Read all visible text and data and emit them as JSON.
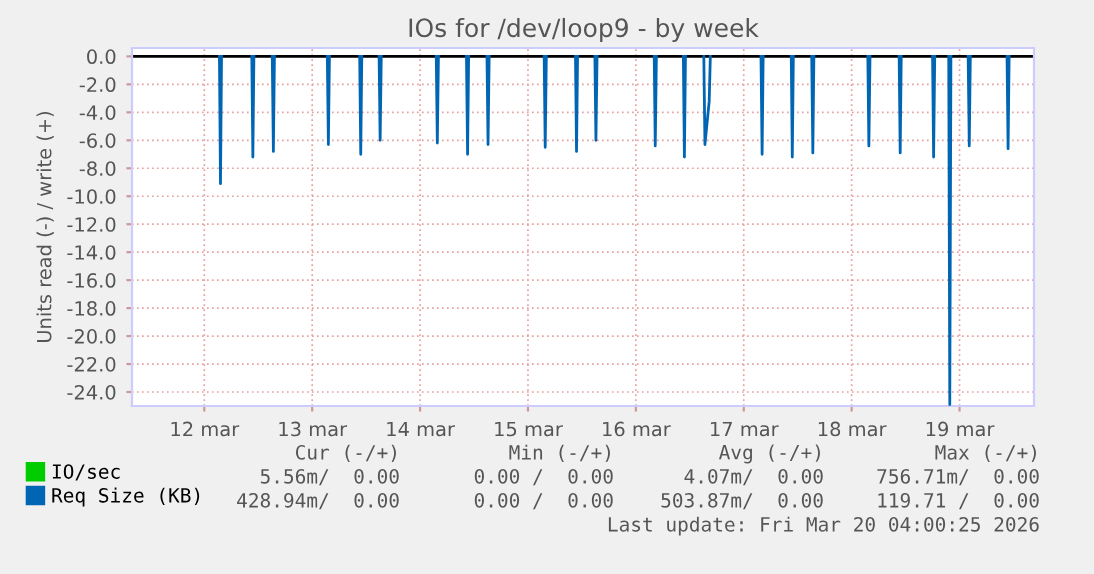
{
  "chart_data": {
    "type": "line",
    "title": "IOs for /dev/loop9 - by week",
    "ylabel": "Units read (-) / write (+)",
    "xlim": [
      "2026-03-11T07:55",
      "2026-03-19T16:34"
    ],
    "xticks": [
      {
        "value": "2026-03-12",
        "label": "12 mar"
      },
      {
        "value": "2026-03-13",
        "label": "13 mar"
      },
      {
        "value": "2026-03-14",
        "label": "14 mar"
      },
      {
        "value": "2026-03-15",
        "label": "15 mar"
      },
      {
        "value": "2026-03-16",
        "label": "16 mar"
      },
      {
        "value": "2026-03-17",
        "label": "17 mar"
      },
      {
        "value": "2026-03-18",
        "label": "18 mar"
      },
      {
        "value": "2026-03-19",
        "label": "19 mar"
      }
    ],
    "ylim": [
      -25,
      0.6
    ],
    "yticks": [
      {
        "value": -24,
        "label": "-24.0"
      },
      {
        "value": -22,
        "label": "-22.0"
      },
      {
        "value": -20,
        "label": "-20.0"
      },
      {
        "value": -18,
        "label": "-18.0"
      },
      {
        "value": -16,
        "label": "-16.0"
      },
      {
        "value": -14,
        "label": "-14.0"
      },
      {
        "value": -12,
        "label": "-12.0"
      },
      {
        "value": -10,
        "label": "-10.0"
      },
      {
        "value": -8,
        "label": "-8.0"
      },
      {
        "value": -6,
        "label": "-6.0"
      },
      {
        "value": -4,
        "label": "-4.0"
      },
      {
        "value": -2,
        "label": "-2.0"
      },
      {
        "value": 0,
        "label": "0.0"
      }
    ],
    "grid": true,
    "legend": "bottom left",
    "ref_lines": [
      {
        "axis": "y",
        "value": 0,
        "color": "#000000"
      }
    ],
    "series": [
      {
        "name": "IO/sec",
        "color": "#00cc00"
      },
      {
        "name": "Req Size (KB)",
        "color": "#0066b3",
        "x": [
          "2026-03-12T03:22",
          "2026-03-12T03:36",
          "2026-03-12T03:50"
        ],
        "values": [
          0,
          -9.1,
          0
        ]
      },
      {
        "color": "#0066b3",
        "x": [
          "2026-03-12T10:34",
          "2026-03-12T10:48",
          "2026-03-12T11:02"
        ],
        "values": [
          0,
          -7.2,
          0
        ]
      },
      {
        "color": "#0066b3",
        "x": [
          "2026-03-12T15:07",
          "2026-03-12T15:22",
          "2026-03-12T15:36"
        ],
        "values": [
          0,
          -6.8,
          0
        ]
      },
      {
        "color": "#0066b3",
        "x": [
          "2026-03-13T03:22",
          "2026-03-13T03:36",
          "2026-03-13T03:50"
        ],
        "values": [
          0,
          -6.3,
          0
        ]
      },
      {
        "color": "#0066b3",
        "x": [
          "2026-03-13T10:34",
          "2026-03-13T10:48",
          "2026-03-13T11:02"
        ],
        "values": [
          0,
          -7.0,
          0
        ]
      },
      {
        "color": "#0066b3",
        "x": [
          "2026-03-13T14:53",
          "2026-03-13T15:07",
          "2026-03-13T15:22"
        ],
        "values": [
          0,
          -6.0,
          0
        ]
      },
      {
        "color": "#0066b3",
        "x": [
          "2026-03-14T03:36",
          "2026-03-14T03:50",
          "2026-03-14T04:05"
        ],
        "values": [
          0,
          -6.2,
          0
        ]
      },
      {
        "color": "#0066b3",
        "x": [
          "2026-03-14T10:19",
          "2026-03-14T10:34",
          "2026-03-14T10:48"
        ],
        "values": [
          0,
          -7.0,
          0
        ]
      },
      {
        "color": "#0066b3",
        "x": [
          "2026-03-14T14:53",
          "2026-03-14T15:07",
          "2026-03-14T15:22"
        ],
        "values": [
          0,
          -6.3,
          0
        ]
      },
      {
        "color": "#0066b3",
        "x": [
          "2026-03-15T03:36",
          "2026-03-15T03:50",
          "2026-03-15T04:05"
        ],
        "values": [
          0,
          -6.5,
          0
        ]
      },
      {
        "color": "#0066b3",
        "x": [
          "2026-03-15T10:34",
          "2026-03-15T10:48",
          "2026-03-15T11:02"
        ],
        "values": [
          0,
          -6.8,
          0
        ]
      },
      {
        "color": "#0066b3",
        "x": [
          "2026-03-15T14:53",
          "2026-03-15T15:07",
          "2026-03-15T15:22"
        ],
        "values": [
          0,
          -6.0,
          0
        ]
      },
      {
        "color": "#0066b3",
        "x": [
          "2026-03-16T04:05",
          "2026-03-16T04:19",
          "2026-03-16T04:34"
        ],
        "values": [
          0,
          -6.4,
          0
        ]
      },
      {
        "color": "#0066b3",
        "x": [
          "2026-03-16T10:34",
          "2026-03-16T10:48",
          "2026-03-16T11:02"
        ],
        "values": [
          0,
          -7.2,
          0
        ]
      },
      {
        "color": "#0066b3",
        "x": [
          "2026-03-16T15:07",
          "2026-03-16T15:22",
          "2026-03-16T16:19",
          "2026-03-16T16:34"
        ],
        "values": [
          0,
          -6.3,
          -3.2,
          0
        ]
      },
      {
        "color": "#0066b3",
        "x": [
          "2026-03-17T03:50",
          "2026-03-17T04:05",
          "2026-03-17T04:19"
        ],
        "values": [
          0,
          -7.0,
          0
        ]
      },
      {
        "color": "#0066b3",
        "x": [
          "2026-03-17T10:34",
          "2026-03-17T10:48",
          "2026-03-17T11:02"
        ],
        "values": [
          0,
          -7.2,
          0
        ]
      },
      {
        "color": "#0066b3",
        "x": [
          "2026-03-17T15:07",
          "2026-03-17T15:22",
          "2026-03-17T15:36"
        ],
        "values": [
          0,
          -6.9,
          0
        ]
      },
      {
        "color": "#0066b3",
        "x": [
          "2026-03-18T03:36",
          "2026-03-18T03:50",
          "2026-03-18T04:05"
        ],
        "values": [
          0,
          -6.4,
          0
        ]
      },
      {
        "color": "#0066b3",
        "x": [
          "2026-03-18T10:34",
          "2026-03-18T10:48",
          "2026-03-18T11:02"
        ],
        "values": [
          0,
          -6.9,
          0
        ]
      },
      {
        "color": "#0066b3",
        "x": [
          "2026-03-18T18:00",
          "2026-03-18T18:14",
          "2026-03-18T18:29"
        ],
        "values": [
          0,
          -7.2,
          0
        ]
      },
      {
        "color": "#0066b3",
        "x": [
          "2026-03-18T21:36",
          "2026-03-18T21:50",
          "2026-03-18T22:05"
        ],
        "values": [
          0,
          -24.9,
          0
        ]
      },
      {
        "color": "#0066b3",
        "x": [
          "2026-03-19T01:55",
          "2026-03-19T02:10",
          "2026-03-19T02:24"
        ],
        "values": [
          0,
          -6.4,
          0
        ]
      },
      {
        "color": "#0066b3",
        "x": [
          "2026-03-19T10:34",
          "2026-03-19T10:48",
          "2026-03-19T11:02"
        ],
        "values": [
          0,
          -6.6,
          0
        ]
      }
    ],
    "annotations": [
      "Cur (-/+)",
      "Min (-/+)",
      "Avg (-/+)",
      "Max (-/+)",
      "5.56m/  0.00",
      "0.00 /  0.00",
      "4.07m/  0.00",
      "756.71m/  0.00",
      "428.94m/  0.00",
      "0.00 /  0.00",
      "503.87m/  0.00",
      "119.71 /  0.00",
      "Last update: Fri Mar 20 04:00:25 2026"
    ]
  }
}
